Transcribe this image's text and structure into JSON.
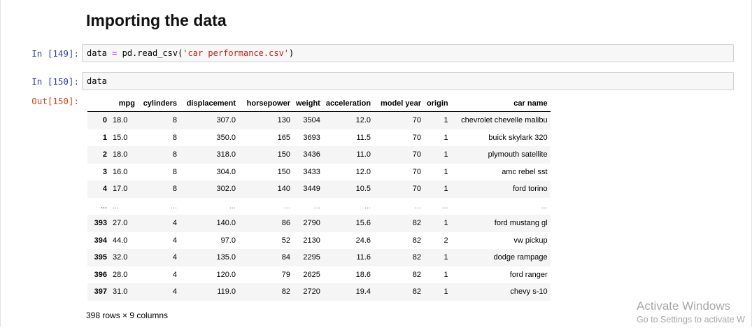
{
  "heading": "Importing the data",
  "cells": {
    "cell1": {
      "prompt": "In [149]:",
      "code": {
        "var": "data",
        "op": "=",
        "call": "pd.read_csv(",
        "arg": "'car performance.csv'",
        "close": ")"
      }
    },
    "cell2": {
      "prompt": "In [150]:",
      "code": "data",
      "out_prompt": "Out[150]:"
    }
  },
  "table": {
    "columns": [
      "mpg",
      "cylinders",
      "displacement",
      "horsepower",
      "weight",
      "acceleration",
      "model year",
      "origin",
      "car name"
    ],
    "rows": [
      {
        "idx": "0",
        "cells": [
          "18.0",
          "8",
          "307.0",
          "130",
          "3504",
          "12.0",
          "70",
          "1",
          "chevrolet chevelle malibu"
        ]
      },
      {
        "idx": "1",
        "cells": [
          "15.0",
          "8",
          "350.0",
          "165",
          "3693",
          "11.5",
          "70",
          "1",
          "buick skylark 320"
        ]
      },
      {
        "idx": "2",
        "cells": [
          "18.0",
          "8",
          "318.0",
          "150",
          "3436",
          "11.0",
          "70",
          "1",
          "plymouth satellite"
        ]
      },
      {
        "idx": "3",
        "cells": [
          "16.0",
          "8",
          "304.0",
          "150",
          "3433",
          "12.0",
          "70",
          "1",
          "amc rebel sst"
        ]
      },
      {
        "idx": "4",
        "cells": [
          "17.0",
          "8",
          "302.0",
          "140",
          "3449",
          "10.5",
          "70",
          "1",
          "ford torino"
        ]
      },
      {
        "idx": "...",
        "cells": [
          "...",
          "...",
          "...",
          "...",
          "...",
          "...",
          "...",
          "...",
          "..."
        ]
      },
      {
        "idx": "393",
        "cells": [
          "27.0",
          "4",
          "140.0",
          "86",
          "2790",
          "15.6",
          "82",
          "1",
          "ford mustang gl"
        ]
      },
      {
        "idx": "394",
        "cells": [
          "44.0",
          "4",
          "97.0",
          "52",
          "2130",
          "24.6",
          "82",
          "2",
          "vw pickup"
        ]
      },
      {
        "idx": "395",
        "cells": [
          "32.0",
          "4",
          "135.0",
          "84",
          "2295",
          "11.6",
          "82",
          "1",
          "dodge rampage"
        ]
      },
      {
        "idx": "396",
        "cells": [
          "28.0",
          "4",
          "120.0",
          "79",
          "2625",
          "18.6",
          "82",
          "1",
          "ford ranger"
        ]
      },
      {
        "idx": "397",
        "cells": [
          "31.0",
          "4",
          "119.0",
          "82",
          "2720",
          "19.4",
          "82",
          "1",
          "chevy s-10"
        ]
      }
    ]
  },
  "summary": "398 rows × 9 columns",
  "watermark": {
    "title": "Activate Windows",
    "subtitle": "Go to Settings to activate W"
  }
}
